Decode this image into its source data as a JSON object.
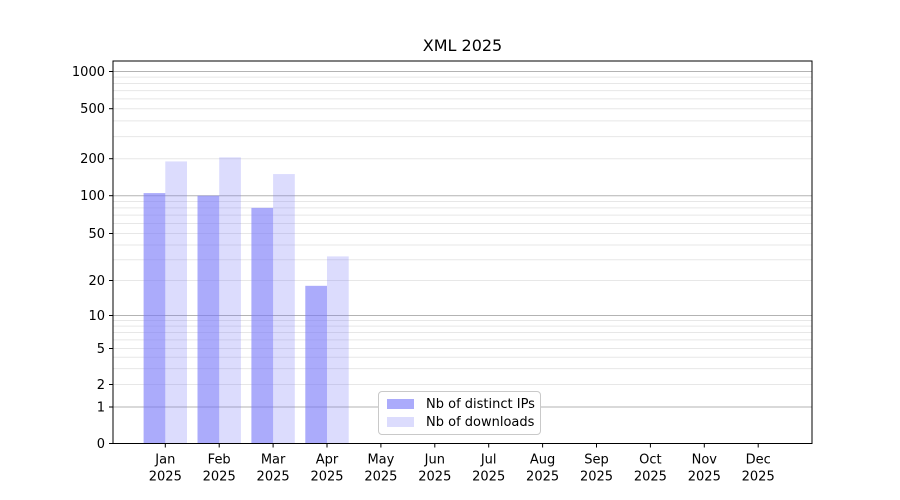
{
  "title": "XML 2025",
  "legend": {
    "items": [
      {
        "label": "Nb of distinct IPs"
      },
      {
        "label": "Nb of downloads"
      }
    ]
  },
  "colors": {
    "bar_distinct_ips": "rgba(120,120,248,0.62)",
    "bar_downloads": "rgba(120,120,248,0.26)",
    "bar_distinct_ips_hex": "#ababfa",
    "bar_downloads_hex": "#dcdcfd",
    "grid_major": "#b3b3b3",
    "grid_minor": "#e7e7e7",
    "axis": "#000000"
  },
  "chart_data": {
    "type": "bar",
    "title": "XML 2025",
    "categories": [
      "Jan 2025",
      "Feb 2025",
      "Mar 2025",
      "Apr 2025",
      "May 2025",
      "Jun 2025",
      "Jul 2025",
      "Aug 2025",
      "Sep 2025",
      "Oct 2025",
      "Nov 2025",
      "Dec 2025"
    ],
    "series": [
      {
        "name": "Nb of distinct IPs",
        "values": [
          105,
          100,
          80,
          18,
          null,
          null,
          null,
          null,
          null,
          null,
          null,
          null
        ]
      },
      {
        "name": "Nb of downloads",
        "values": [
          190,
          205,
          150,
          32,
          null,
          null,
          null,
          null,
          null,
          null,
          null,
          null
        ]
      }
    ],
    "xlabel": "",
    "ylabel": "",
    "yscale": "symlog",
    "ytick_labels": [
      "0",
      "1",
      "2",
      "5",
      "10",
      "20",
      "50",
      "100",
      "200",
      "500",
      "1000"
    ],
    "yticks": [
      0,
      1,
      2,
      5,
      10,
      20,
      50,
      100,
      200,
      500,
      1000
    ],
    "minor_yticks": [
      3,
      4,
      6,
      7,
      8,
      9,
      30,
      40,
      60,
      70,
      80,
      90,
      300,
      400,
      600,
      700,
      800,
      900
    ],
    "ylim": [
      0,
      1150
    ],
    "grid": "horizontal, major and minor",
    "legend_position": "lower center inside plot"
  }
}
